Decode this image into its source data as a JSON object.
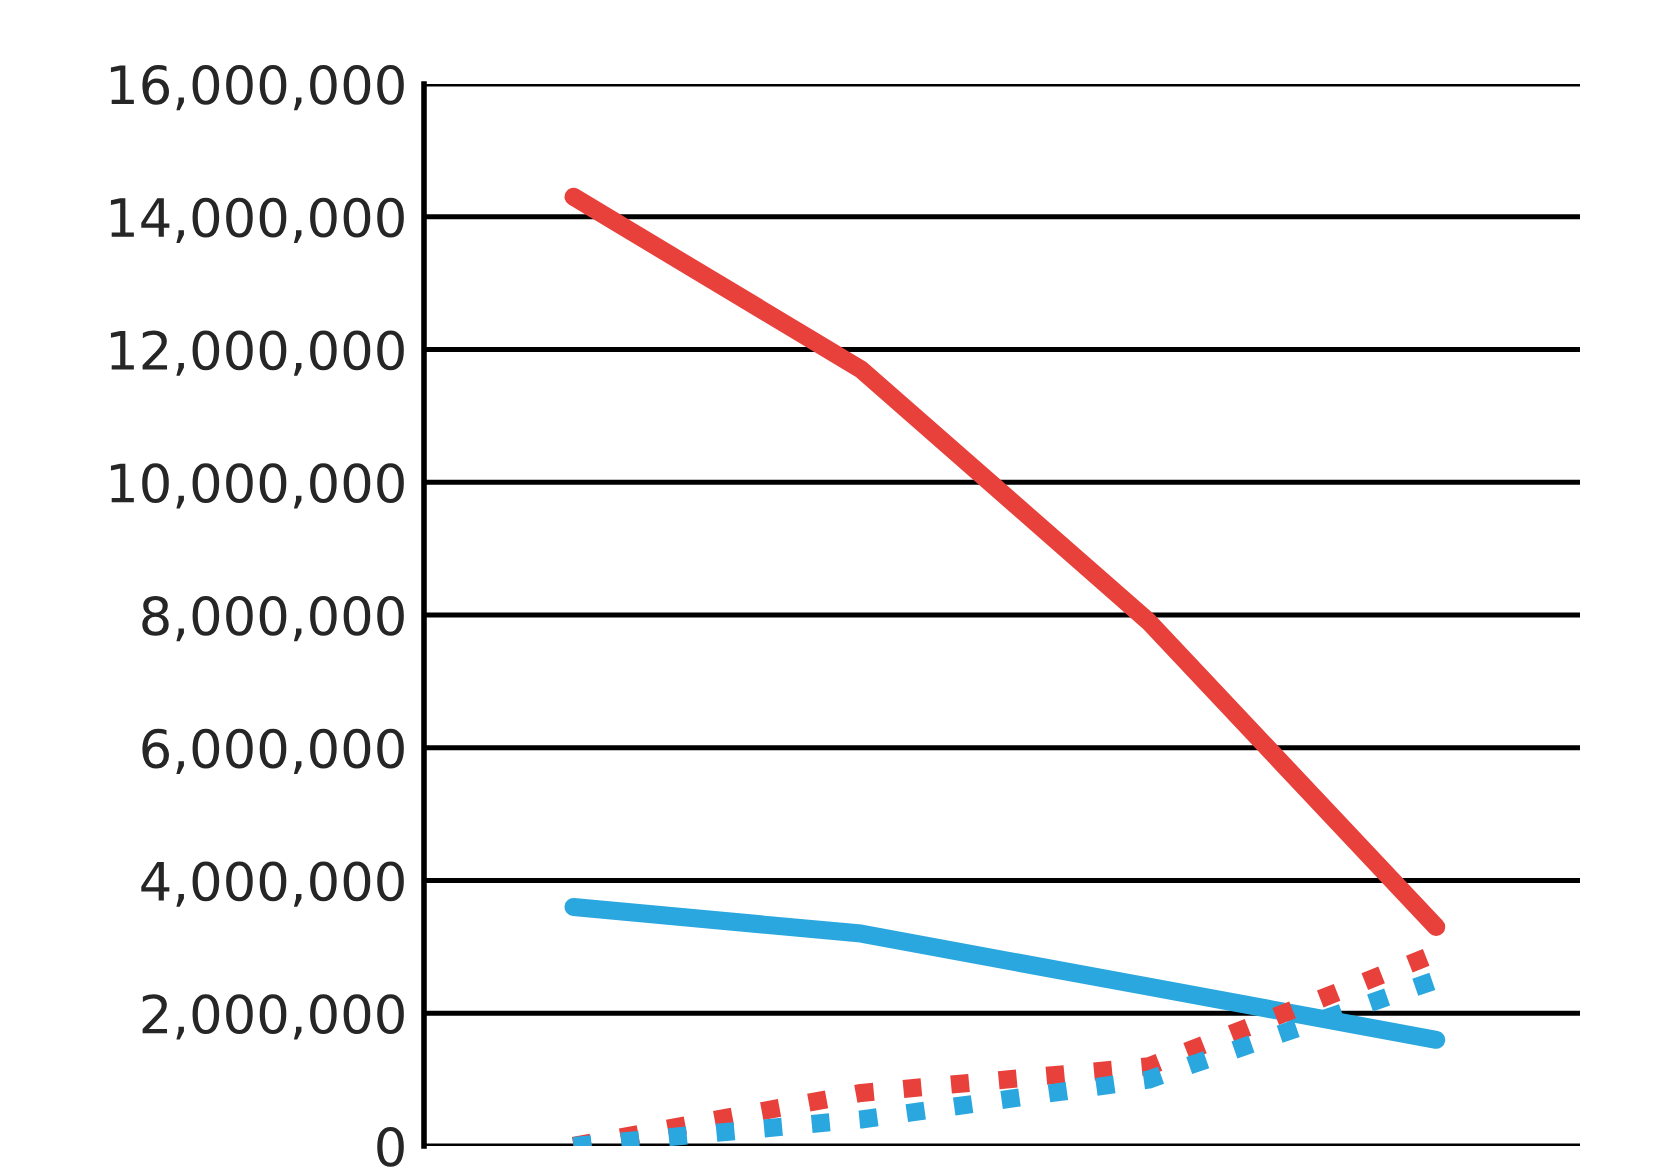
{
  "chart_data": {
    "type": "line",
    "categories": [
      null,
      null,
      null,
      null
    ],
    "series": [
      {
        "color": "#e8403a",
        "values": [
          14300000,
          11700000,
          7900000,
          3300000
        ],
        "line_style": "solid"
      },
      {
        "color": "#2aa7df",
        "values": [
          3600000,
          3200000,
          2400000,
          1600000
        ],
        "line_style": "solid"
      },
      {
        "color": "#e8403a",
        "values": [
          0,
          800000,
          1200000,
          2900000
        ],
        "line_style": "dotted"
      },
      {
        "color": "#2aa7df",
        "values": [
          0,
          400000,
          1000000,
          2500000
        ],
        "line_style": "dotted"
      }
    ],
    "ylim": [
      0,
      16000000
    ],
    "yticks": [
      {
        "value": 0,
        "label": "0"
      },
      {
        "value": 2000000,
        "label": "2,000,000"
      },
      {
        "value": 4000000,
        "label": "4,000,000"
      },
      {
        "value": 6000000,
        "label": "6,000,000"
      },
      {
        "value": 8000000,
        "label": "8,000,000"
      },
      {
        "value": 10000000,
        "label": "10,000,000"
      },
      {
        "value": 12000000,
        "label": "12,000,000"
      },
      {
        "value": 14000000,
        "label": "14,000,000"
      },
      {
        "value": 16000000,
        "label": "16,000,000"
      }
    ],
    "grid": "y",
    "tick_labels": "y",
    "legend": false,
    "marker": "none"
  }
}
